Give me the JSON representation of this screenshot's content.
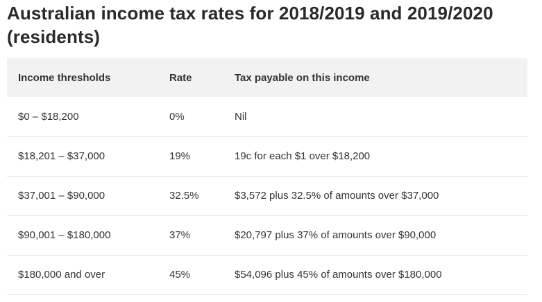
{
  "title": "Australian income tax rates for 2018/2019 and 2019/2020 (residents)",
  "table": {
    "headers": {
      "threshold": "Income thresholds",
      "rate": "Rate",
      "payable": "Tax payable on this income"
    },
    "rows": [
      {
        "threshold": "$0 – $18,200",
        "rate": "0%",
        "payable": "Nil"
      },
      {
        "threshold": "$18,201 – $37,000",
        "rate": "19%",
        "payable": "19c for each $1 over $18,200"
      },
      {
        "threshold": "$37,001 – $90,000",
        "rate": "32.5%",
        "payable": "$3,572 plus 32.5% of amounts over $37,000"
      },
      {
        "threshold": "$90,001 – $180,000",
        "rate": "37%",
        "payable": "$20,797 plus 37% of amounts over $90,000"
      },
      {
        "threshold": "$180,000 and over",
        "rate": "45%",
        "payable": "$54,096 plus 45% of amounts over $180,000"
      }
    ]
  }
}
